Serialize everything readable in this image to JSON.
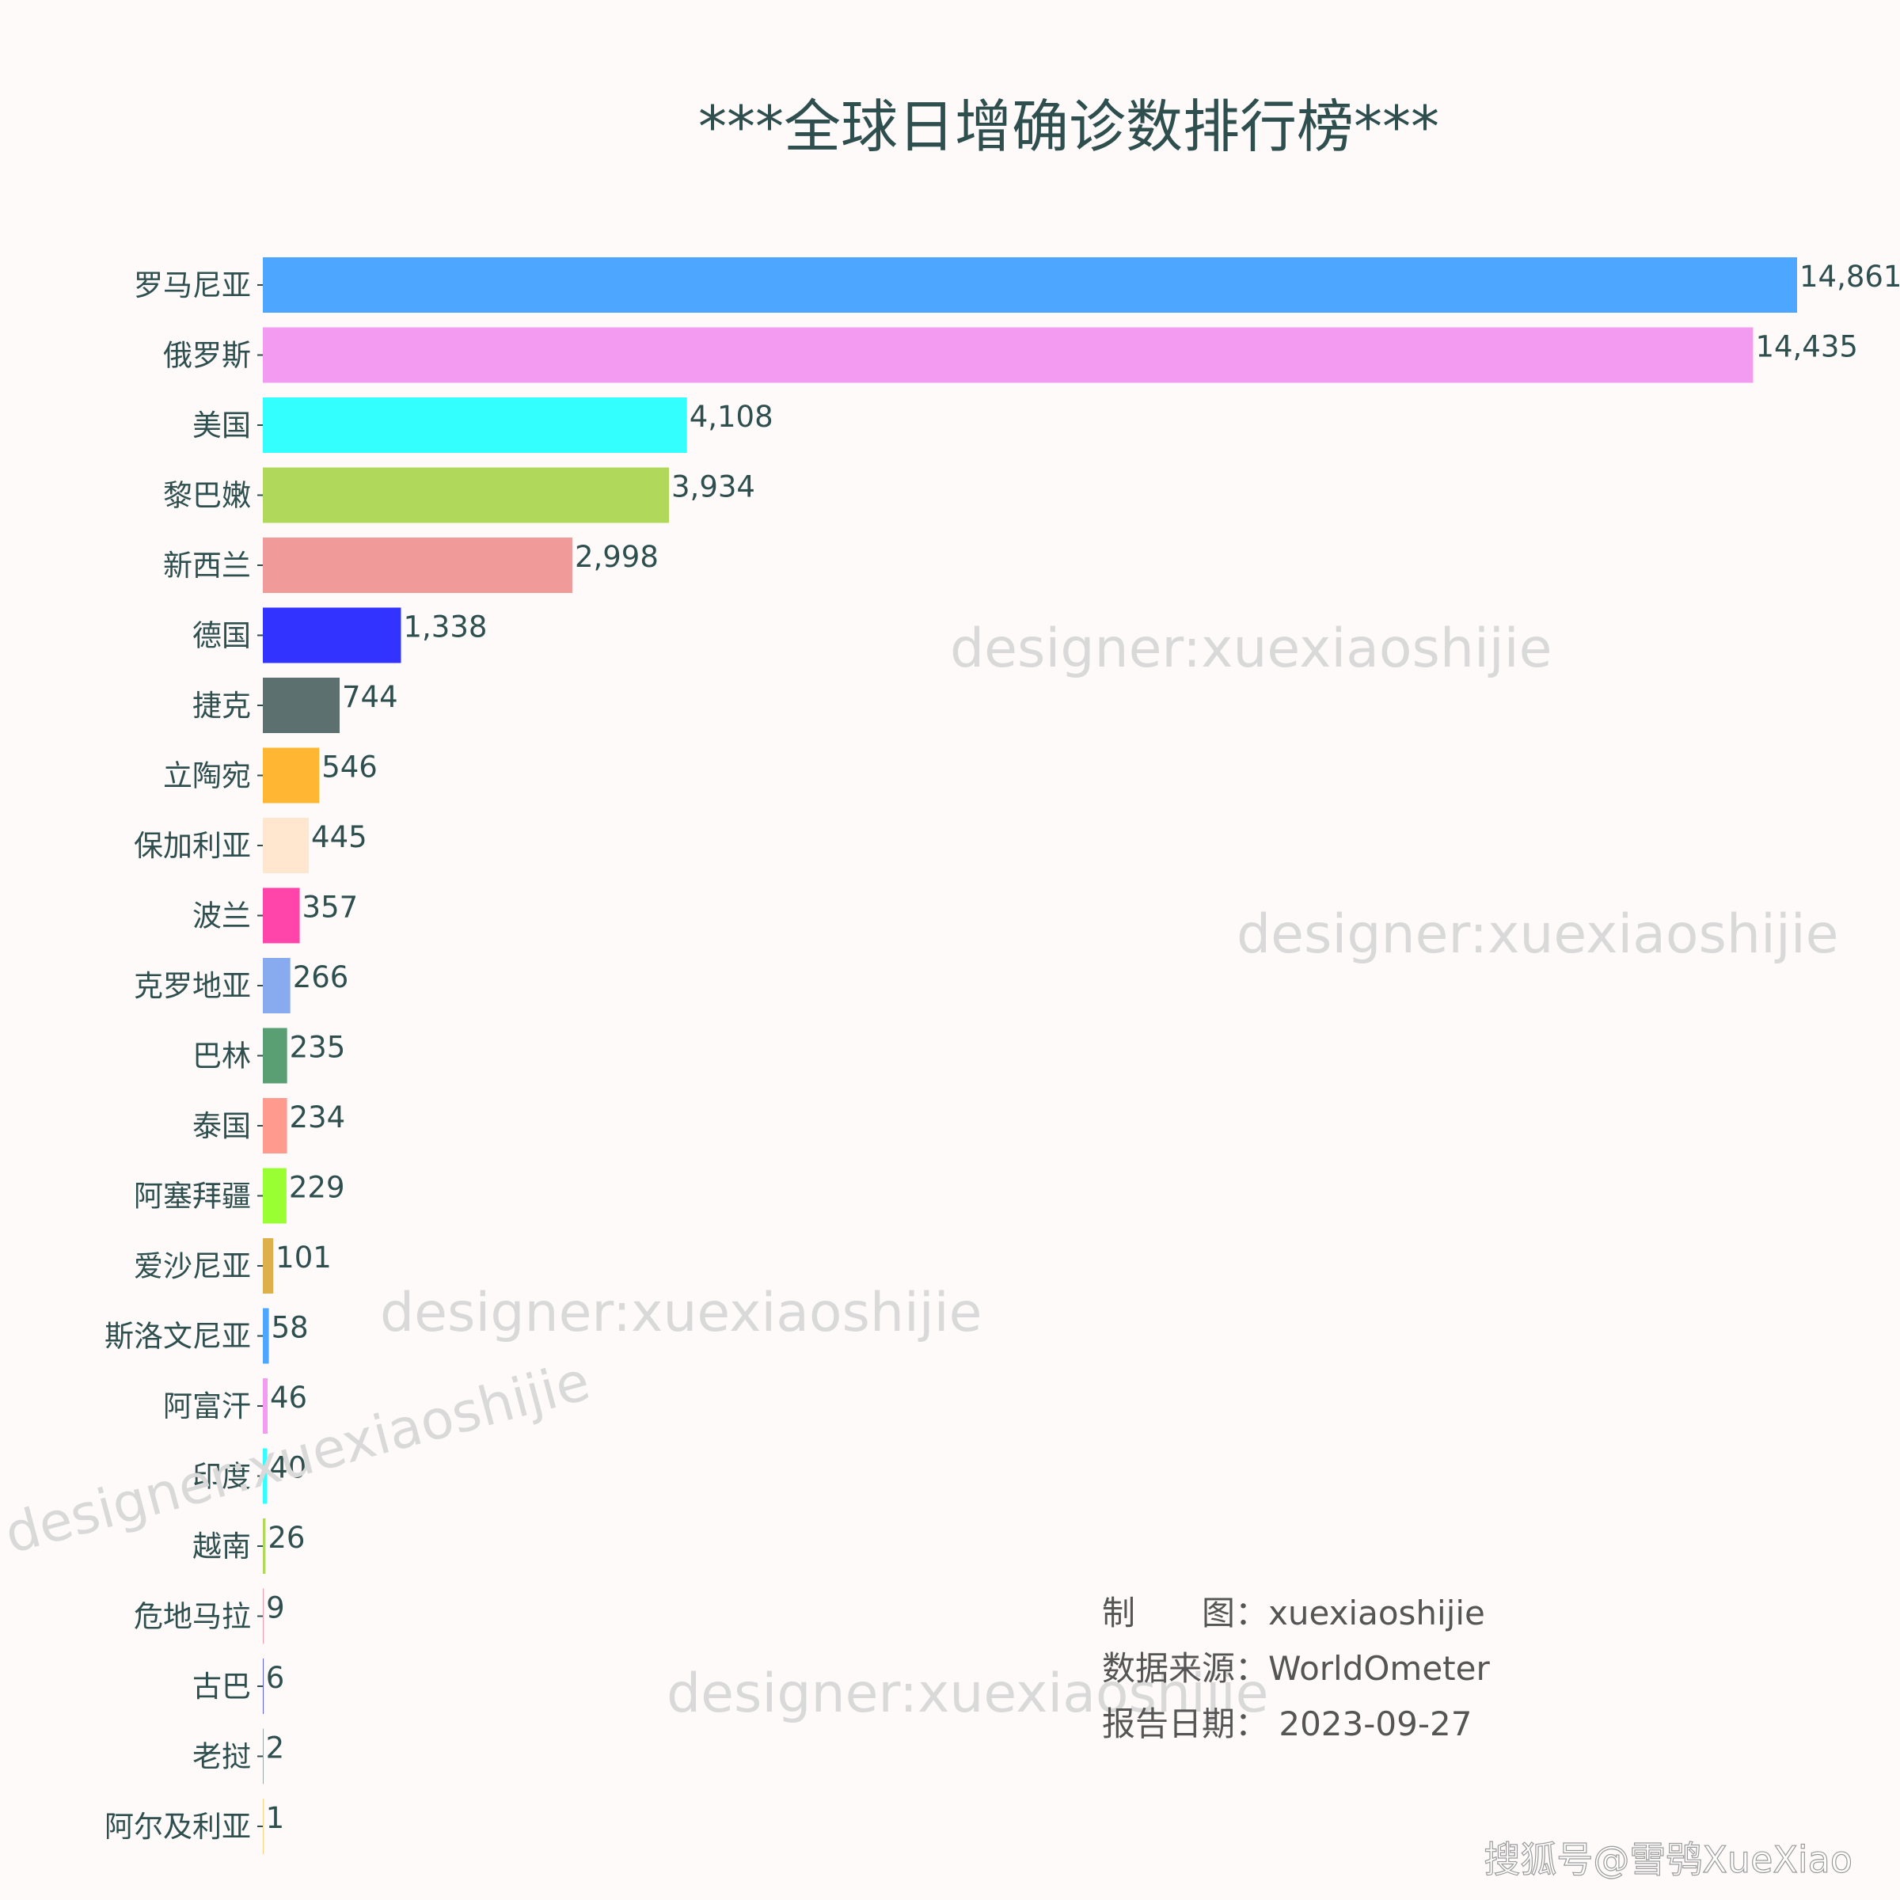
{
  "chart_data": {
    "type": "bar",
    "orientation": "horizontal",
    "title": "***全球日增确诊数排行榜***",
    "xlabel": "",
    "ylabel": "",
    "xlim": [
      0,
      14861
    ],
    "grid": false,
    "legend": "none",
    "categories": [
      "罗马尼亚",
      "俄罗斯",
      "美国",
      "黎巴嫩",
      "新西兰",
      "德国",
      "捷克",
      "立陶宛",
      "保加利亚",
      "波兰",
      "克罗地亚",
      "巴林",
      "泰国",
      "阿塞拜疆",
      "爱沙尼亚",
      "斯洛文尼亚",
      "阿富汗",
      "印度",
      "越南",
      "危地马拉",
      "古巴",
      "老挝",
      "阿尔及利亚"
    ],
    "values": [
      14861,
      14435,
      4108,
      3934,
      2998,
      1338,
      744,
      546,
      445,
      357,
      266,
      235,
      234,
      229,
      101,
      58,
      46,
      40,
      26,
      9,
      6,
      2,
      1
    ],
    "value_labels": [
      "14,861",
      "14,435",
      "4,108",
      "3,934",
      "2,998",
      "1,338",
      "744",
      "546",
      "445",
      "357",
      "266",
      "235",
      "234",
      "229",
      "101",
      "58",
      "46",
      "40",
      "26",
      "9",
      "6",
      "2",
      "1"
    ],
    "colors": [
      "#4da6ff",
      "#f29bf0",
      "#33ffff",
      "#b0d95b",
      "#f09a9a",
      "#3333ff",
      "#5c7070",
      "#ffb733",
      "#ffe7cf",
      "#ff44aa",
      "#88aaee",
      "#5a9e73",
      "#ff9a8e",
      "#99ff33",
      "#ddb04c",
      "#4da6ff",
      "#f29bf0",
      "#33ffff",
      "#b0d95b",
      "#f0a0b0",
      "#3333ff",
      "#5c7070",
      "#ffb733"
    ]
  },
  "watermarks": [
    "designer:xuexiaoshijie",
    "designer:xuexiaoshijie",
    "designer:xuexiaoshijie",
    "designer:xuexiaoshijie",
    "designer:xuexiaoshijie"
  ],
  "info": {
    "maker": "制　　图：xuexiaoshijie",
    "source": "数据来源：WorldOmeter",
    "date": "报告日期： 2023-09-27"
  },
  "credit": "搜狐号@雪鸮XueXiao"
}
